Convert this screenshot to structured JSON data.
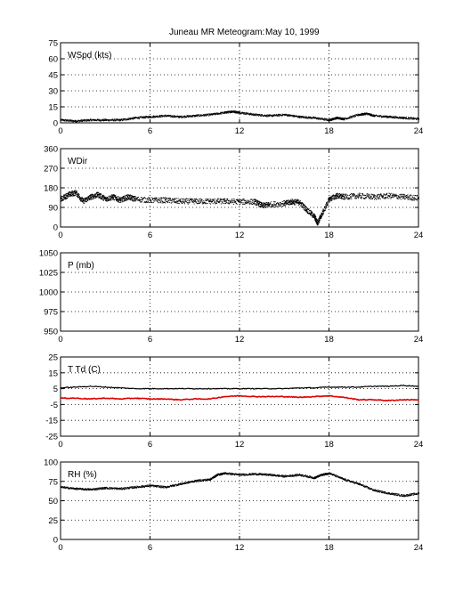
{
  "title": {
    "station": "Juneau MR Meteogram:",
    "date": "May 10, 1999"
  },
  "chart_data": [
    {
      "type": "scatter",
      "label": "WSpd (kts)",
      "xlim": [
        0,
        24
      ],
      "ylim": [
        0,
        75
      ],
      "xticks": [
        0,
        6,
        12,
        18,
        24
      ],
      "yticks": [
        0,
        15,
        30,
        45,
        60,
        75
      ],
      "grid": true,
      "series": [
        {
          "color": "#000000",
          "points": [
            [
              0,
              3
            ],
            [
              1,
              2
            ],
            [
              2,
              3
            ],
            [
              3,
              3
            ],
            [
              4,
              3
            ],
            [
              5,
              5
            ],
            [
              6,
              6
            ],
            [
              7,
              7
            ],
            [
              8,
              6
            ],
            [
              9,
              7
            ],
            [
              10,
              8
            ],
            [
              11,
              10
            ],
            [
              11.5,
              11
            ],
            [
              12,
              10
            ],
            [
              13,
              8
            ],
            [
              14,
              7
            ],
            [
              15,
              8
            ],
            [
              16,
              6
            ],
            [
              17,
              5
            ],
            [
              18,
              3
            ],
            [
              18.5,
              5
            ],
            [
              19,
              4
            ],
            [
              20,
              8
            ],
            [
              20.5,
              9
            ],
            [
              21,
              7
            ],
            [
              22,
              6
            ],
            [
              23,
              5
            ],
            [
              24,
              4
            ]
          ]
        }
      ]
    },
    {
      "type": "scatter",
      "label": "WDir",
      "xlim": [
        0,
        24
      ],
      "ylim": [
        0,
        360
      ],
      "xticks": [
        0,
        6,
        12,
        18,
        24
      ],
      "yticks": [
        0,
        90,
        180,
        270,
        360
      ],
      "grid": true,
      "series": [
        {
          "color": "#000000",
          "points": [
            [
              0,
              130
            ],
            [
              0.5,
              150
            ],
            [
              1,
              160
            ],
            [
              1.5,
              120
            ],
            [
              2,
              140
            ],
            [
              2.5,
              150
            ],
            [
              3,
              130
            ],
            [
              3.5,
              140
            ],
            [
              4,
              125
            ],
            [
              4.5,
              140
            ],
            [
              5,
              130
            ],
            [
              6,
              125
            ],
            [
              7,
              125
            ],
            [
              8,
              120
            ],
            [
              9,
              120
            ],
            [
              10,
              120
            ],
            [
              11,
              120
            ],
            [
              12,
              118
            ],
            [
              13,
              118
            ],
            [
              13.5,
              100
            ],
            [
              14,
              105
            ],
            [
              15,
              110
            ],
            [
              15.5,
              118
            ],
            [
              16,
              115
            ],
            [
              16.5,
              80
            ],
            [
              17,
              50
            ],
            [
              17.2,
              20
            ],
            [
              17.5,
              60
            ],
            [
              18,
              130
            ],
            [
              18.5,
              145
            ],
            [
              19,
              140
            ],
            [
              20,
              145
            ],
            [
              21,
              140
            ],
            [
              22,
              145
            ],
            [
              23,
              140
            ],
            [
              24,
              135
            ]
          ]
        }
      ]
    },
    {
      "type": "line",
      "label": "P (mb)",
      "xlim": [
        0,
        24
      ],
      "ylim": [
        950,
        1050
      ],
      "xticks": [
        0,
        6,
        12,
        18,
        24
      ],
      "yticks": [
        950,
        975,
        1000,
        1025,
        1050
      ],
      "grid": true,
      "series": []
    },
    {
      "type": "line",
      "label": "T Td (C)",
      "xlim": [
        0,
        24
      ],
      "ylim": [
        -25,
        25
      ],
      "xticks": [
        0,
        6,
        12,
        18,
        24
      ],
      "yticks": [
        -25,
        -15,
        -5,
        5,
        15,
        25
      ],
      "grid": true,
      "series": [
        {
          "color": "#000000",
          "points": [
            [
              0,
              5.5
            ],
            [
              1,
              6
            ],
            [
              2,
              6.5
            ],
            [
              3,
              6
            ],
            [
              4,
              5.5
            ],
            [
              5,
              5
            ],
            [
              6,
              5
            ],
            [
              7,
              5
            ],
            [
              8,
              5
            ],
            [
              9,
              5
            ],
            [
              10,
              5
            ],
            [
              11,
              5
            ],
            [
              12,
              5
            ],
            [
              13,
              5
            ],
            [
              14,
              5
            ],
            [
              15,
              5
            ],
            [
              16,
              5.5
            ],
            [
              17,
              5.5
            ],
            [
              18,
              6
            ],
            [
              19,
              6
            ],
            [
              20,
              6
            ],
            [
              21,
              6.5
            ],
            [
              22,
              6.5
            ],
            [
              23,
              7
            ],
            [
              24,
              6.5
            ]
          ]
        },
        {
          "color": "#dd0000",
          "points": [
            [
              0,
              -1
            ],
            [
              1,
              -1
            ],
            [
              2,
              -1.5
            ],
            [
              3,
              -1
            ],
            [
              4,
              -1.5
            ],
            [
              5,
              -1
            ],
            [
              6,
              -1.5
            ],
            [
              7,
              -1.5
            ],
            [
              8,
              -2
            ],
            [
              9,
              -1.5
            ],
            [
              10,
              -1.5
            ],
            [
              11,
              0
            ],
            [
              12,
              0.5
            ],
            [
              13,
              0
            ],
            [
              14,
              0
            ],
            [
              15,
              0
            ],
            [
              16,
              -0.5
            ],
            [
              17,
              0
            ],
            [
              18,
              0.5
            ],
            [
              19,
              -0.5
            ],
            [
              20,
              -2
            ],
            [
              21,
              -2
            ],
            [
              22,
              -2.5
            ],
            [
              23,
              -2
            ],
            [
              24,
              -2
            ]
          ]
        }
      ]
    },
    {
      "type": "scatter",
      "label": "RH (%)",
      "xlim": [
        0,
        24
      ],
      "ylim": [
        0,
        100
      ],
      "xticks": [
        0,
        6,
        12,
        18,
        24
      ],
      "yticks": [
        0,
        25,
        50,
        75,
        100
      ],
      "grid": true,
      "series": [
        {
          "color": "#000000",
          "points": [
            [
              0,
              68
            ],
            [
              1,
              66
            ],
            [
              2,
              65
            ],
            [
              3,
              67
            ],
            [
              4,
              66
            ],
            [
              5,
              68
            ],
            [
              6,
              70
            ],
            [
              7,
              68
            ],
            [
              8,
              72
            ],
            [
              9,
              76
            ],
            [
              10,
              78
            ],
            [
              10.5,
              84
            ],
            [
              11,
              86
            ],
            [
              12,
              84
            ],
            [
              13,
              85
            ],
            [
              14,
              84
            ],
            [
              15,
              82
            ],
            [
              16,
              84
            ],
            [
              17,
              80
            ],
            [
              17.5,
              84
            ],
            [
              18,
              86
            ],
            [
              19,
              78
            ],
            [
              20,
              72
            ],
            [
              21,
              64
            ],
            [
              22,
              60
            ],
            [
              23,
              57
            ],
            [
              24,
              60
            ]
          ]
        }
      ]
    }
  ]
}
